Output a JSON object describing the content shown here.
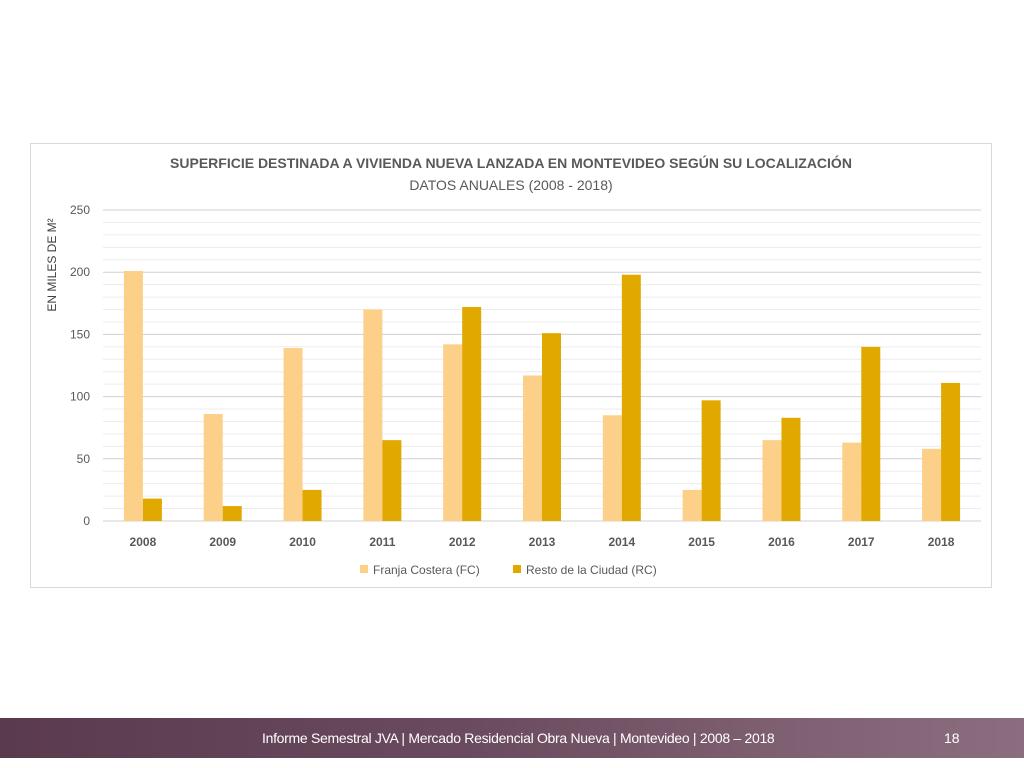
{
  "chart_data": {
    "type": "bar",
    "title": "SUPERFICIE DESTINADA A VIVIENDA NUEVA LANZADA EN MONTEVIDEO SEGÚN SU LOCALIZACIÓN",
    "subtitle": "DATOS ANUALES (2008 - 2018)",
    "xlabel": "",
    "ylabel": "EN MILES DE M²",
    "ylim": [
      0,
      250
    ],
    "yticks": [
      "0",
      "50",
      "100",
      "150",
      "200",
      "250"
    ],
    "grid": true,
    "legend_position": "bottom",
    "categories": [
      "2008",
      "2009",
      "2010",
      "2011",
      "2012",
      "2013",
      "2014",
      "2015",
      "2016",
      "2017",
      "2018"
    ],
    "series": [
      {
        "name": "Franja Costera (FC)",
        "color": "#fcd088",
        "values": [
          201,
          86,
          139,
          170,
          142,
          117,
          85,
          25,
          65,
          63,
          58
        ]
      },
      {
        "name": "Resto de la Ciudad (RC)",
        "color": "#e1a800",
        "values": [
          18,
          12,
          25,
          65,
          172,
          151,
          198,
          97,
          83,
          140,
          111
        ]
      }
    ]
  },
  "footer": {
    "text": "Informe Semestral JVA | Mercado Residencial Obra Nueva | Montevideo | 2008 – 2018",
    "page_number": "18"
  }
}
